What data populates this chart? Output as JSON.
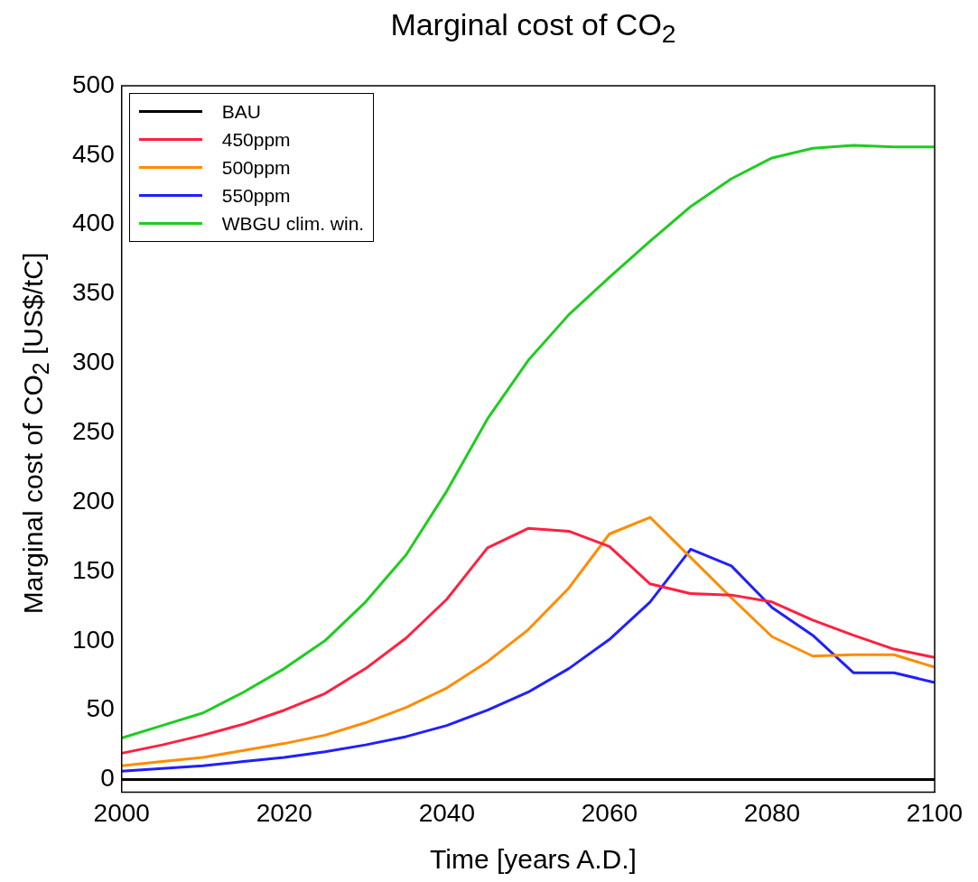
{
  "chart_data": {
    "type": "line",
    "title": "Marginal cost of CO$_{2}$",
    "xlabel": "Time [years A.D.]",
    "ylabel": "Marginal cost of CO$_{2}$ [US$/tC]",
    "x": [
      2000,
      2005,
      2010,
      2015,
      2020,
      2025,
      2030,
      2035,
      2040,
      2045,
      2050,
      2055,
      2060,
      2065,
      2070,
      2075,
      2080,
      2085,
      2090,
      2095,
      2100
    ],
    "series": [
      {
        "name": "BAU",
        "color": "#000000",
        "values": [
          0,
          0,
          0,
          0,
          0,
          0,
          0,
          0,
          0,
          0,
          0,
          0,
          0,
          0,
          0,
          0,
          0,
          0,
          0,
          0,
          0
        ]
      },
      {
        "name": "450ppm",
        "color": "#ff2040",
        "values": [
          19,
          25,
          32,
          40,
          50,
          62,
          80,
          102,
          130,
          167,
          181,
          179,
          168,
          141,
          134,
          133,
          128,
          115,
          104,
          94,
          88
        ]
      },
      {
        "name": "500ppm",
        "color": "#ff8c00",
        "values": [
          10,
          13,
          16,
          21,
          26,
          32,
          41,
          52,
          66,
          85,
          108,
          138,
          177,
          189,
          160,
          131,
          103,
          89,
          90,
          90,
          81
        ]
      },
      {
        "name": "550ppm",
        "color": "#2020ff",
        "values": [
          6,
          8,
          10,
          13,
          16,
          20,
          25,
          31,
          39,
          50,
          63,
          80,
          101,
          128,
          166,
          154,
          124,
          104,
          77,
          77,
          70
        ]
      },
      {
        "name": "WBGU clim. win.",
        "color": "#20cc20",
        "values": [
          30,
          39,
          48,
          63,
          80,
          100,
          128,
          162,
          208,
          260,
          302,
          335,
          362,
          388,
          413,
          433,
          448,
          455,
          457,
          456,
          456
        ]
      }
    ],
    "xlim": [
      2000,
      2100
    ],
    "xticks": [
      2000,
      2020,
      2040,
      2060,
      2080,
      2100
    ],
    "ylim": [
      -9,
      500
    ],
    "yticks": [
      0,
      50,
      100,
      150,
      200,
      250,
      300,
      350,
      400,
      450,
      500
    ],
    "grid": false,
    "legend": "top left",
    "marker": "none",
    "line_style": "solid"
  }
}
